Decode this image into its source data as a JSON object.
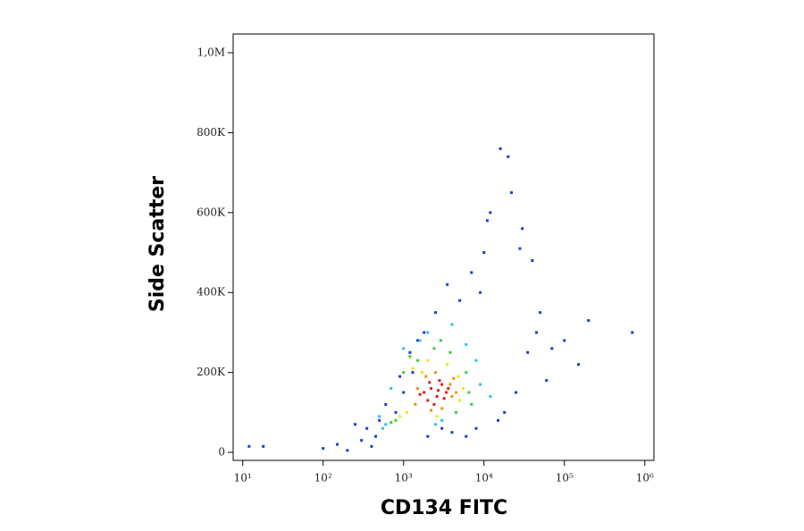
{
  "chart_data": {
    "type": "scatter",
    "x_label": "CD134 FITC",
    "y_label": "Side Scatter",
    "xscale": "log",
    "xlim": [
      7.6,
      1300000
    ],
    "xticks": [
      {
        "value": 10,
        "label": "10¹"
      },
      {
        "value": 100,
        "label": "10²"
      },
      {
        "value": 1000,
        "label": "10³"
      },
      {
        "value": 10000,
        "label": "10⁴"
      },
      {
        "value": 100000,
        "label": "10⁵"
      },
      {
        "value": 1000000,
        "label": "10⁶"
      }
    ],
    "ylim": [
      -20000,
      1047000
    ],
    "yticks": [
      0,
      {
        "value": 200000,
        "label": "200K"
      },
      {
        "value": 400000,
        "label": "400K"
      },
      {
        "value": 600000,
        "label": "600K"
      },
      {
        "value": 800000,
        "label": "800K"
      },
      {
        "value": 1000000,
        "label": "1,0M"
      }
    ],
    "series": [
      {
        "color": "#1a3cd8",
        "x": [
          12,
          18,
          100,
          150,
          200,
          250,
          300,
          350,
          400,
          450,
          500,
          600,
          800,
          900,
          1000,
          1200,
          1300,
          1500,
          1800,
          2000,
          2500,
          3000,
          3500,
          4000,
          5000,
          6000,
          7000,
          8000,
          9000,
          10000,
          11000,
          12000,
          15000,
          16000,
          18000,
          20000,
          22000,
          25000,
          28000,
          30000,
          35000,
          40000,
          45000,
          50000,
          60000,
          70000,
          100000,
          150000,
          200000,
          700000
        ],
        "y": [
          15000,
          15000,
          10000,
          20000,
          5000,
          70000,
          30000,
          60000,
          15000,
          40000,
          80000,
          120000,
          100000,
          190000,
          150000,
          250000,
          200000,
          280000,
          300000,
          40000,
          350000,
          60000,
          420000,
          50000,
          380000,
          40000,
          450000,
          60000,
          400000,
          500000,
          580000,
          600000,
          80000,
          760000,
          100000,
          740000,
          650000,
          150000,
          510000,
          560000,
          250000,
          480000,
          300000,
          350000,
          180000,
          260000,
          280000,
          220000,
          330000,
          300000
        ]
      },
      {
        "color": "#25c4e8",
        "x": [
          600,
          9000,
          1000,
          8000,
          2000,
          4000,
          550,
          12000,
          1600,
          3000,
          500,
          6000,
          2500,
          700
        ],
        "y": [
          70000,
          170000,
          260000,
          230000,
          300000,
          320000,
          60000,
          140000,
          280000,
          80000,
          90000,
          270000,
          70000,
          160000
        ]
      },
      {
        "color": "#3ccc3c",
        "x": [
          800,
          6500,
          1200,
          6000,
          2400,
          3800,
          700,
          7000,
          1500,
          4500,
          1000,
          2900
        ],
        "y": [
          80000,
          150000,
          240000,
          200000,
          260000,
          250000,
          75000,
          120000,
          230000,
          100000,
          200000,
          280000
        ]
      },
      {
        "color": "#e8e81c",
        "x": [
          1100,
          5000,
          1300,
          4800,
          2000,
          3500,
          900,
          5500,
          2600,
          1700
        ],
        "y": [
          100000,
          130000,
          210000,
          190000,
          230000,
          220000,
          90000,
          160000,
          90000,
          200000
        ]
      },
      {
        "color": "#f88a1a",
        "x": [
          1400,
          4000,
          1900,
          3800,
          2500,
          4500,
          1500,
          3000,
          2200,
          4200
        ],
        "y": [
          120000,
          140000,
          190000,
          170000,
          200000,
          150000,
          160000,
          110000,
          105000,
          185000
        ]
      },
      {
        "color": "#e0201b",
        "x": [
          1800,
          2200,
          2600,
          3000,
          3400,
          2000,
          2800,
          3600,
          2400,
          1600,
          3200,
          2100,
          2700
        ],
        "y": [
          150000,
          160000,
          140000,
          170000,
          150000,
          130000,
          180000,
          160000,
          120000,
          145000,
          135000,
          175000,
          155000
        ]
      }
    ]
  }
}
